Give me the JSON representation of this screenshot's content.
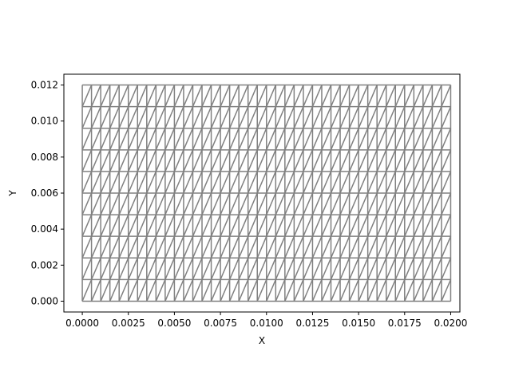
{
  "chart_data": {
    "type": "mesh",
    "title": "",
    "xlabel": "X",
    "ylabel": "Y",
    "xlim": [
      -0.001,
      0.0205
    ],
    "ylim": [
      -0.0006,
      0.0126
    ],
    "x_range": [
      0.0,
      0.02
    ],
    "y_range": [
      0.0,
      0.012
    ],
    "nx": 40,
    "ny": 10,
    "line_color": "#808080",
    "grid": false,
    "legend": "none",
    "xticks": [
      0.0,
      0.0025,
      0.005,
      0.0075,
      0.01,
      0.0125,
      0.015,
      0.0175,
      0.02
    ],
    "xtick_labels": [
      "0.0000",
      "0.0025",
      "0.0050",
      "0.0075",
      "0.0100",
      "0.0125",
      "0.0150",
      "0.0175",
      "0.0200"
    ],
    "yticks": [
      0.0,
      0.002,
      0.004,
      0.006,
      0.008,
      0.01,
      0.012
    ],
    "ytick_labels": [
      "0.000",
      "0.002",
      "0.004",
      "0.006",
      "0.008",
      "0.010",
      "0.012"
    ]
  }
}
